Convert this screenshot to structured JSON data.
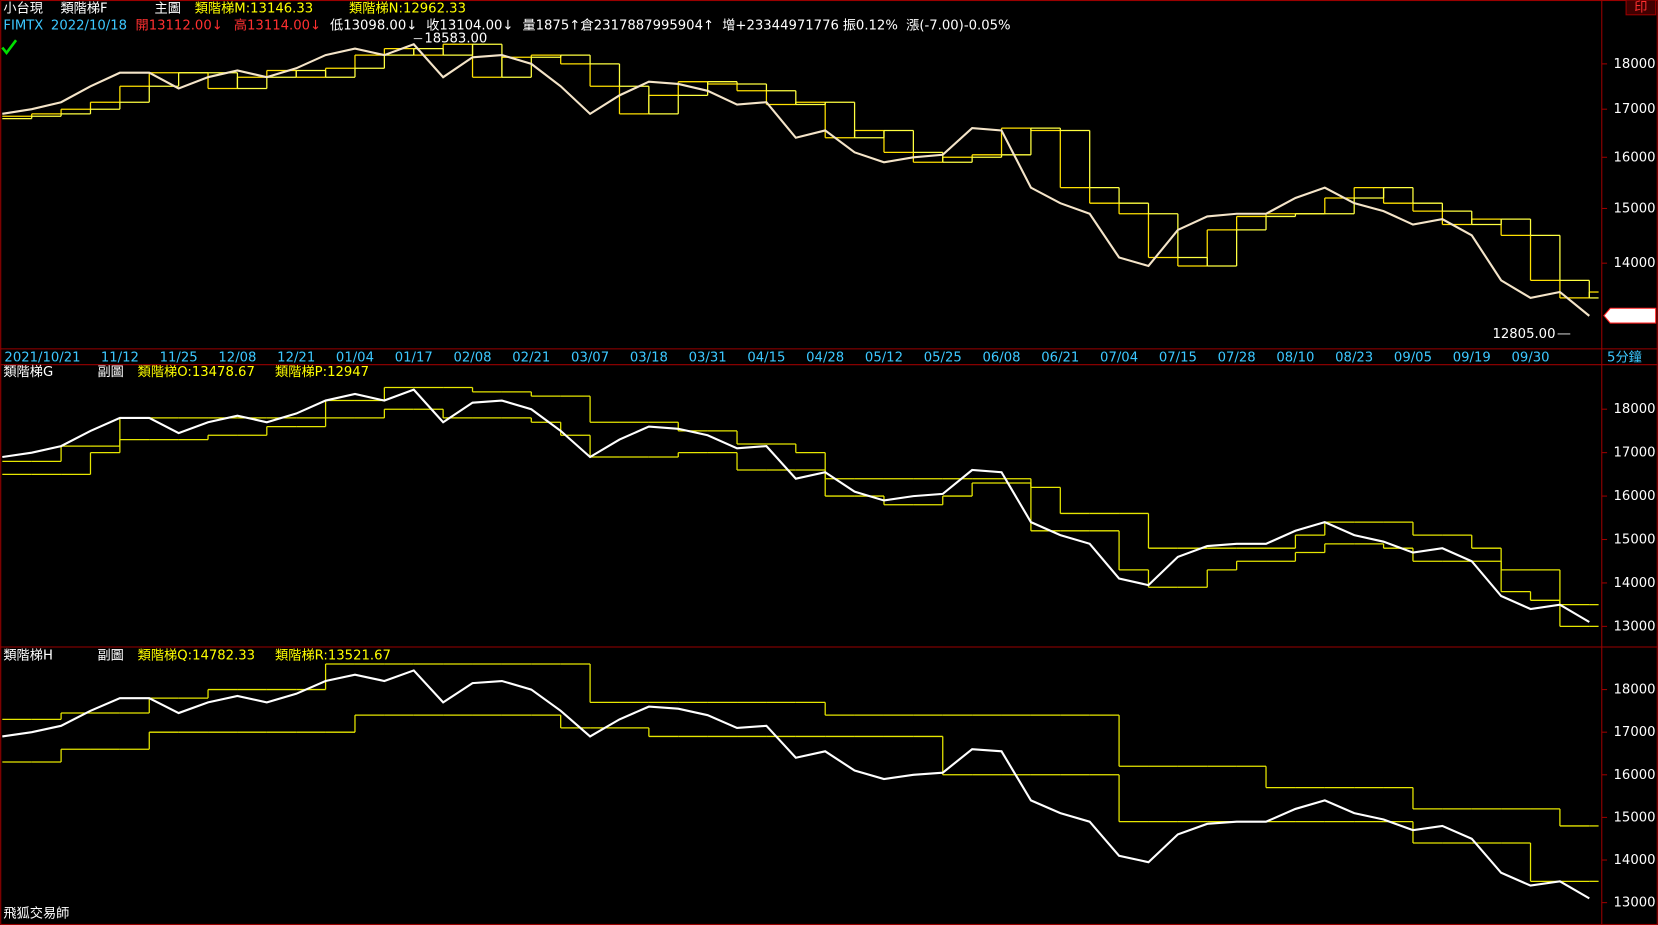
{
  "header": {
    "symbol": "小台現",
    "print_button": "印",
    "quote": [
      "FIMTX",
      "2022/10/18",
      "開13112.00↓",
      "高13114.00↓",
      "低13098.00↓",
      "收13104.00↓",
      "量1875↑",
      "倉2317887995904↑",
      "增+23344971776",
      "振0.12%",
      "漲(-7.00)-0.05%"
    ],
    "period": "5分鐘",
    "footer": "飛狐交易師"
  },
  "chart_data": [
    {
      "type": "line",
      "title": "類階梯F",
      "label": "主圖",
      "log": true,
      "categories": [
        null,
        "2021/10/21",
        null,
        null,
        "11/12",
        null,
        "11/25",
        null,
        "12/08",
        null,
        "12/21",
        null,
        "01/04",
        null,
        "01/17",
        null,
        "02/08",
        null,
        "02/21",
        null,
        "03/07",
        null,
        "03/18",
        null,
        "03/31",
        null,
        "04/15",
        null,
        "04/28",
        null,
        "05/12",
        null,
        "05/25",
        null,
        "06/08",
        null,
        "06/21",
        null,
        "07/04",
        null,
        "07/15",
        null,
        "07/28",
        null,
        "08/10",
        null,
        "08/23",
        null,
        "09/05",
        null,
        "09/19",
        null,
        "09/30",
        null,
        null
      ],
      "values": [
        16900,
        17000,
        17150,
        17500,
        17800,
        17800,
        17450,
        17700,
        17850,
        17700,
        17900,
        18200,
        18350,
        18200,
        18450,
        17700,
        18150,
        18200,
        18000,
        17500,
        16900,
        17300,
        17600,
        17550,
        17400,
        17100,
        17150,
        16400,
        16550,
        16100,
        15900,
        16000,
        16050,
        16600,
        16550,
        15400,
        15100,
        14900,
        14100,
        13950,
        14600,
        14850,
        14900,
        14900,
        15200,
        15400,
        15100,
        14950,
        14700,
        14800,
        14500,
        13700,
        13400,
        13500,
        13100
      ],
      "color": "#f4e4c8",
      "series": [
        {
          "name": "類階梯M:13146.33",
          "color": "#ffe000",
          "values": [
            16850,
            16900,
            17000,
            17150,
            17500,
            17800,
            17800,
            17450,
            17700,
            17850,
            17700,
            17900,
            18200,
            18350,
            18200,
            18450,
            17700,
            18150,
            18200,
            18000,
            17500,
            16900,
            17300,
            17600,
            17550,
            17400,
            17100,
            17150,
            16400,
            16550,
            16100,
            15900,
            16000,
            16050,
            16600,
            16550,
            15400,
            15100,
            14900,
            14100,
            13950,
            14600,
            14850,
            14900,
            14900,
            15200,
            15400,
            15100,
            14950,
            14700,
            14800,
            14500,
            13700,
            13400,
            13500
          ]
        },
        {
          "name": "類階梯N:12962.33",
          "color": "#ffff40",
          "values": [
            16800,
            16850,
            16900,
            17000,
            17150,
            17500,
            17800,
            17800,
            17450,
            17700,
            17850,
            17700,
            17900,
            18200,
            18350,
            18200,
            18450,
            17700,
            18150,
            18200,
            18000,
            17500,
            16900,
            17300,
            17600,
            17550,
            17400,
            17100,
            17150,
            16400,
            16550,
            16100,
            15900,
            16000,
            16050,
            16600,
            16550,
            15400,
            15100,
            14900,
            14100,
            13950,
            14600,
            14850,
            14900,
            14900,
            15200,
            15400,
            15100,
            14950,
            14700,
            14800,
            14500,
            13700,
            13400
          ]
        }
      ],
      "ylim": [
        12600,
        19200
      ],
      "yticks": [
        14000,
        15000,
        16000,
        17000,
        18000
      ],
      "high_label": {
        "value": 18583,
        "label": "18583.00"
      },
      "low_label": {
        "value": 12805,
        "label": "12805.00"
      },
      "last_price": 13104
    },
    {
      "type": "line",
      "title": "類階梯G",
      "label": "副圖",
      "values": [
        16900,
        17000,
        17150,
        17500,
        17800,
        17800,
        17450,
        17700,
        17850,
        17700,
        17900,
        18200,
        18350,
        18200,
        18450,
        17700,
        18150,
        18200,
        18000,
        17500,
        16900,
        17300,
        17600,
        17550,
        17400,
        17100,
        17150,
        16400,
        16550,
        16100,
        15900,
        16000,
        16050,
        16600,
        16550,
        15400,
        15100,
        14900,
        14100,
        13950,
        14600,
        14850,
        14900,
        14900,
        15200,
        15400,
        15100,
        14950,
        14700,
        14800,
        14500,
        13700,
        13400,
        13500,
        13100
      ],
      "color": "#ffffff",
      "series": [
        {
          "name": "類階梯O:13478.67",
          "color": "#e6e600",
          "values": [
            16800,
            16800,
            17150,
            17150,
            17800,
            17800,
            17800,
            17800,
            17800,
            17800,
            17800,
            18200,
            18200,
            18500,
            18500,
            18500,
            18400,
            18400,
            18300,
            18300,
            17700,
            17700,
            17700,
            17500,
            17500,
            17200,
            17200,
            17000,
            16400,
            16400,
            16400,
            16400,
            16400,
            16400,
            16400,
            16200,
            15600,
            15600,
            15600,
            14800,
            14800,
            14800,
            14800,
            14800,
            15100,
            15400,
            15400,
            15400,
            15100,
            15100,
            14800,
            14300,
            14300,
            13500,
            13500
          ]
        },
        {
          "name": "類階梯P:12947",
          "color": "#e6e600",
          "values": [
            16500,
            16500,
            16500,
            17000,
            17300,
            17300,
            17300,
            17400,
            17400,
            17600,
            17600,
            17800,
            17800,
            18000,
            18000,
            17800,
            17800,
            17800,
            17700,
            17400,
            16900,
            16900,
            16900,
            17000,
            17000,
            16600,
            16600,
            16600,
            16000,
            16000,
            15800,
            15800,
            16000,
            16300,
            16300,
            15200,
            15200,
            15200,
            14300,
            13900,
            13900,
            14300,
            14500,
            14500,
            14700,
            14900,
            14900,
            14800,
            14500,
            14500,
            14500,
            13800,
            13600,
            13000,
            13000
          ]
        }
      ],
      "ylim": [
        12550,
        19000
      ],
      "yticks": [
        13000,
        14000,
        15000,
        16000,
        17000,
        18000
      ]
    },
    {
      "type": "line",
      "title": "類階梯H",
      "label": "副圖",
      "values": [
        16900,
        17000,
        17150,
        17500,
        17800,
        17800,
        17450,
        17700,
        17850,
        17700,
        17900,
        18200,
        18350,
        18200,
        18450,
        17700,
        18150,
        18200,
        18000,
        17500,
        16900,
        17300,
        17600,
        17550,
        17400,
        17100,
        17150,
        16400,
        16550,
        16100,
        15900,
        16000,
        16050,
        16600,
        16550,
        15400,
        15100,
        14900,
        14100,
        13950,
        14600,
        14850,
        14900,
        14900,
        15200,
        15400,
        15100,
        14950,
        14700,
        14800,
        14500,
        13700,
        13400,
        13500,
        13100
      ],
      "color": "#ffffff",
      "series": [
        {
          "name": "類階梯Q:14782.33",
          "color": "#e6e600",
          "values": [
            17300,
            17300,
            17450,
            17450,
            17450,
            17800,
            17800,
            18000,
            18000,
            18000,
            18000,
            18600,
            18600,
            18600,
            18600,
            18600,
            18600,
            18600,
            18600,
            18600,
            17700,
            17700,
            17700,
            17700,
            17700,
            17700,
            17700,
            17700,
            17400,
            17400,
            17400,
            17400,
            17400,
            17400,
            17400,
            17400,
            17400,
            17400,
            16200,
            16200,
            16200,
            16200,
            16200,
            15700,
            15700,
            15700,
            15700,
            15700,
            15200,
            15200,
            15200,
            15200,
            15200,
            14800,
            14800
          ]
        },
        {
          "name": "類階梯R:13521.67",
          "color": "#e6e600",
          "values": [
            16300,
            16300,
            16600,
            16600,
            16600,
            17000,
            17000,
            17000,
            17000,
            17000,
            17000,
            17000,
            17400,
            17400,
            17400,
            17400,
            17400,
            17400,
            17400,
            17100,
            17100,
            17100,
            16900,
            16900,
            16900,
            16900,
            16900,
            16900,
            16900,
            16900,
            16900,
            16900,
            16000,
            16000,
            16000,
            16000,
            16000,
            16000,
            14900,
            14900,
            14900,
            14900,
            14900,
            14900,
            14900,
            14900,
            14900,
            14900,
            14400,
            14400,
            14400,
            14400,
            13500,
            13500,
            13500
          ]
        }
      ],
      "ylim": [
        12500,
        18950
      ],
      "yticks": [
        13000,
        14000,
        15000,
        16000,
        17000,
        18000
      ]
    }
  ]
}
